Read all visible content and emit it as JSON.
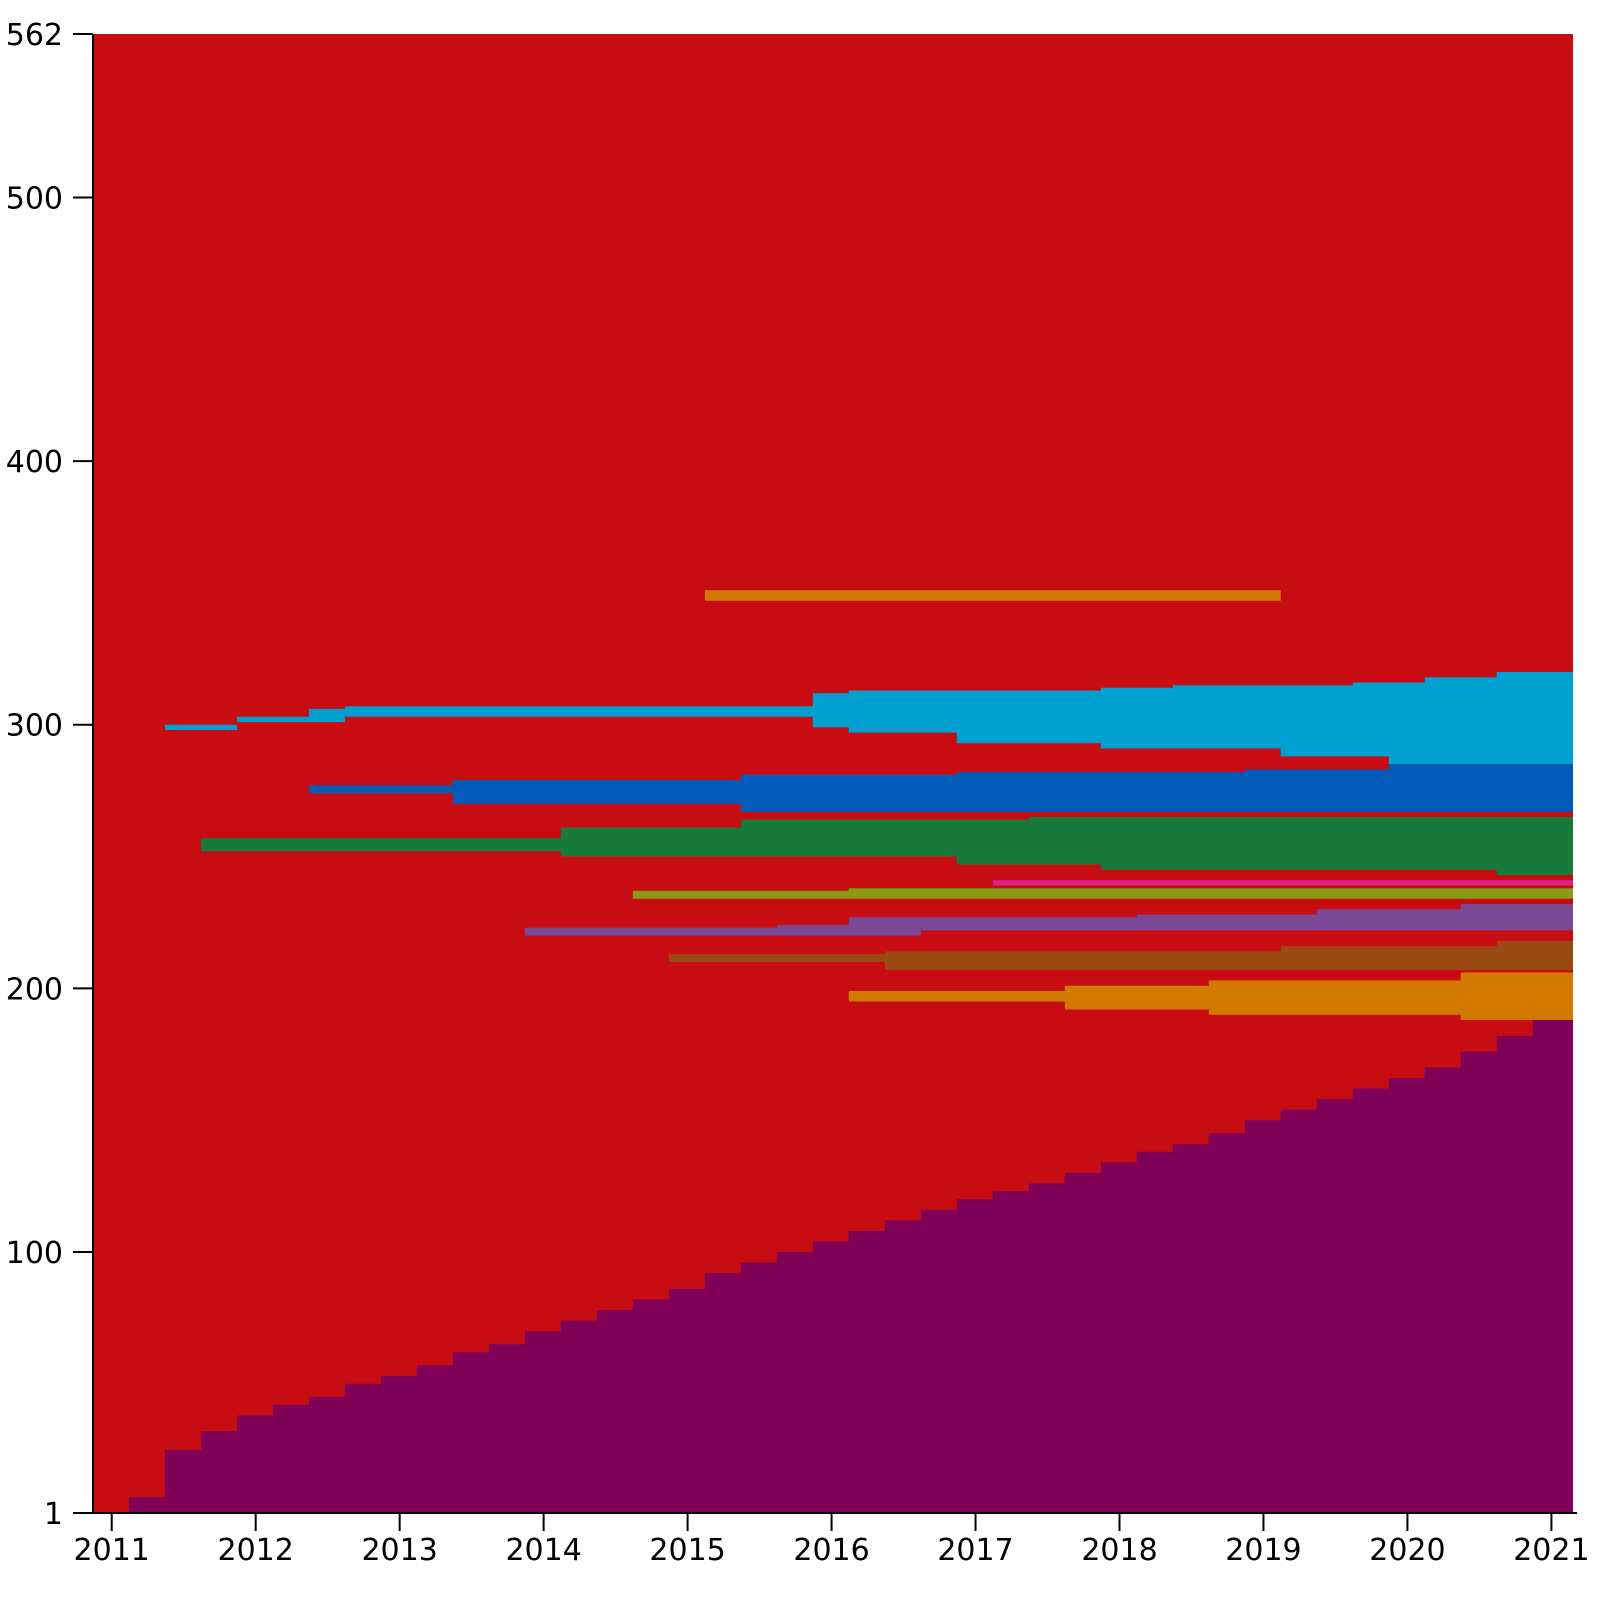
{
  "chart_data": {
    "type": "area",
    "title": "",
    "xlabel": "",
    "ylabel": "",
    "grid": false,
    "legend": "none",
    "x_ticks": [
      "2011",
      "2012",
      "2013",
      "2014",
      "2015",
      "2016",
      "2017",
      "2018",
      "2019",
      "2020",
      "2021"
    ],
    "y_ticks": [
      "1",
      "100",
      "200",
      "300",
      "400",
      "500",
      "562"
    ],
    "ylim": [
      1,
      562
    ],
    "x_range": [
      2010.87,
      2021.15
    ],
    "series": [
      {
        "color": "#800058",
        "points": [
          [
            2010.87,
            1
          ],
          [
            2011.12,
            1
          ],
          [
            2011.12,
            7
          ],
          [
            2011.37,
            7
          ],
          [
            2011.37,
            25
          ],
          [
            2011.62,
            25
          ],
          [
            2011.62,
            32
          ],
          [
            2011.87,
            32
          ],
          [
            2011.87,
            38
          ],
          [
            2012.12,
            38
          ],
          [
            2012.12,
            42
          ],
          [
            2012.37,
            42
          ],
          [
            2012.37,
            45
          ],
          [
            2012.62,
            45
          ],
          [
            2012.62,
            50
          ],
          [
            2012.87,
            50
          ],
          [
            2012.87,
            53
          ],
          [
            2013.12,
            53
          ],
          [
            2013.12,
            57
          ],
          [
            2013.37,
            57
          ],
          [
            2013.37,
            62
          ],
          [
            2013.62,
            62
          ],
          [
            2013.62,
            65
          ],
          [
            2013.87,
            65
          ],
          [
            2013.87,
            70
          ],
          [
            2014.12,
            70
          ],
          [
            2014.12,
            74
          ],
          [
            2014.37,
            74
          ],
          [
            2014.37,
            78
          ],
          [
            2014.62,
            78
          ],
          [
            2014.62,
            82
          ],
          [
            2014.87,
            82
          ],
          [
            2014.87,
            86
          ],
          [
            2015.12,
            86
          ],
          [
            2015.12,
            92
          ],
          [
            2015.37,
            92
          ],
          [
            2015.37,
            96
          ],
          [
            2015.62,
            96
          ],
          [
            2015.62,
            100
          ],
          [
            2015.87,
            100
          ],
          [
            2015.87,
            104
          ],
          [
            2016.12,
            104
          ],
          [
            2016.12,
            108
          ],
          [
            2016.37,
            108
          ],
          [
            2016.37,
            112
          ],
          [
            2016.62,
            112
          ],
          [
            2016.62,
            116
          ],
          [
            2016.87,
            116
          ],
          [
            2016.87,
            120
          ],
          [
            2017.12,
            120
          ],
          [
            2017.12,
            123
          ],
          [
            2017.37,
            123
          ],
          [
            2017.37,
            126
          ],
          [
            2017.62,
            126
          ],
          [
            2017.62,
            130
          ],
          [
            2017.87,
            130
          ],
          [
            2017.87,
            134
          ],
          [
            2018.12,
            134
          ],
          [
            2018.12,
            138
          ],
          [
            2018.37,
            138
          ],
          [
            2018.37,
            141
          ],
          [
            2018.62,
            141
          ],
          [
            2018.62,
            145
          ],
          [
            2018.87,
            145
          ],
          [
            2018.87,
            150
          ],
          [
            2019.12,
            150
          ],
          [
            2019.12,
            154
          ],
          [
            2019.37,
            154
          ],
          [
            2019.37,
            158
          ],
          [
            2019.62,
            158
          ],
          [
            2019.62,
            162
          ],
          [
            2019.87,
            162
          ],
          [
            2019.87,
            166
          ],
          [
            2020.12,
            166
          ],
          [
            2020.12,
            170
          ],
          [
            2020.37,
            170
          ],
          [
            2020.37,
            176
          ],
          [
            2020.62,
            176
          ],
          [
            2020.62,
            182
          ],
          [
            2020.87,
            182
          ],
          [
            2020.87,
            188
          ],
          [
            2021.15,
            188
          ]
        ]
      },
      {
        "color": "#00A0D0",
        "points": [
          [
            2011.37,
            298
          ],
          [
            2011.87,
            298
          ],
          [
            2011.87,
            301
          ],
          [
            2012.62,
            301
          ],
          [
            2012.62,
            303
          ],
          [
            2015.87,
            303
          ],
          [
            2015.87,
            299
          ],
          [
            2016.12,
            299
          ],
          [
            2016.12,
            297
          ],
          [
            2016.87,
            297
          ],
          [
            2016.87,
            293
          ],
          [
            2017.87,
            293
          ],
          [
            2017.87,
            291
          ],
          [
            2019.12,
            291
          ],
          [
            2019.12,
            288
          ],
          [
            2019.87,
            288
          ],
          [
            2019.87,
            285
          ],
          [
            2021.15,
            285
          ]
        ],
        "top": [
          [
            2011.37,
            300
          ],
          [
            2011.87,
            300
          ],
          [
            2011.87,
            303
          ],
          [
            2012.37,
            303
          ],
          [
            2012.37,
            306
          ],
          [
            2012.62,
            306
          ],
          [
            2012.62,
            307
          ],
          [
            2015.87,
            307
          ],
          [
            2015.87,
            312
          ],
          [
            2016.12,
            312
          ],
          [
            2016.12,
            313
          ],
          [
            2017.87,
            313
          ],
          [
            2017.87,
            314
          ],
          [
            2018.37,
            314
          ],
          [
            2018.37,
            315
          ],
          [
            2019.62,
            315
          ],
          [
            2019.62,
            316
          ],
          [
            2020.12,
            316
          ],
          [
            2020.12,
            318
          ],
          [
            2020.62,
            318
          ],
          [
            2020.62,
            320
          ],
          [
            2021.15,
            320
          ]
        ]
      },
      {
        "color": "#005BBB",
        "points": [
          [
            2012.37,
            274
          ],
          [
            2013.37,
            274
          ],
          [
            2013.37,
            270
          ],
          [
            2015.37,
            270
          ],
          [
            2015.37,
            267
          ],
          [
            2021.15,
            267
          ]
        ],
        "top": [
          [
            2012.37,
            277
          ],
          [
            2013.37,
            277
          ],
          [
            2013.37,
            279
          ],
          [
            2015.37,
            279
          ],
          [
            2015.37,
            281
          ],
          [
            2016.87,
            281
          ],
          [
            2016.87,
            282
          ],
          [
            2018.87,
            282
          ],
          [
            2018.87,
            283
          ],
          [
            2019.87,
            283
          ],
          [
            2019.87,
            285
          ],
          [
            2021.15,
            285
          ]
        ]
      },
      {
        "color": "#187A3A",
        "points": [
          [
            2011.62,
            252
          ],
          [
            2014.12,
            252
          ],
          [
            2014.12,
            250
          ],
          [
            2016.87,
            250
          ],
          [
            2016.87,
            247
          ],
          [
            2017.87,
            247
          ],
          [
            2017.87,
            245
          ],
          [
            2020.62,
            245
          ],
          [
            2020.62,
            243
          ],
          [
            2021.15,
            243
          ]
        ],
        "top": [
          [
            2011.62,
            257
          ],
          [
            2014.12,
            257
          ],
          [
            2014.12,
            261
          ],
          [
            2015.37,
            261
          ],
          [
            2015.37,
            264
          ],
          [
            2017.37,
            264
          ],
          [
            2017.37,
            265
          ],
          [
            2021.15,
            265
          ]
        ]
      },
      {
        "color": "#E0208A",
        "points": [
          [
            2017.12,
            239
          ],
          [
            2021.15,
            239
          ]
        ],
        "top": [
          [
            2017.12,
            241
          ],
          [
            2021.15,
            241
          ]
        ]
      },
      {
        "color": "#8A9A12",
        "points": [
          [
            2014.62,
            234
          ],
          [
            2021.15,
            234
          ]
        ],
        "top": [
          [
            2014.62,
            237
          ],
          [
            2016.12,
            237
          ],
          [
            2016.12,
            238
          ],
          [
            2021.15,
            238
          ]
        ]
      },
      {
        "color": "#7A4894",
        "points": [
          [
            2013.87,
            220
          ],
          [
            2016.62,
            220
          ],
          [
            2016.62,
            222
          ],
          [
            2021.15,
            222
          ]
        ],
        "top": [
          [
            2013.87,
            223
          ],
          [
            2015.62,
            223
          ],
          [
            2015.62,
            224
          ],
          [
            2016.12,
            224
          ],
          [
            2016.12,
            227
          ],
          [
            2018.12,
            227
          ],
          [
            2018.12,
            228
          ],
          [
            2019.37,
            228
          ],
          [
            2019.37,
            230
          ],
          [
            2020.37,
            230
          ],
          [
            2020.37,
            232
          ],
          [
            2021.15,
            232
          ]
        ]
      },
      {
        "color": "#9A4A12",
        "points": [
          [
            2014.87,
            210
          ],
          [
            2016.37,
            210
          ],
          [
            2016.37,
            207
          ],
          [
            2021.15,
            207
          ]
        ],
        "top": [
          [
            2014.87,
            213
          ],
          [
            2016.37,
            213
          ],
          [
            2016.37,
            214
          ],
          [
            2019.12,
            214
          ],
          [
            2019.12,
            216
          ],
          [
            2020.62,
            216
          ],
          [
            2020.62,
            218
          ],
          [
            2021.15,
            218
          ]
        ]
      },
      {
        "color": "#D27A00",
        "points": [
          [
            2016.12,
            195
          ],
          [
            2017.62,
            195
          ],
          [
            2017.62,
            192
          ],
          [
            2018.62,
            192
          ],
          [
            2018.62,
            190
          ],
          [
            2020.37,
            190
          ],
          [
            2020.37,
            188
          ],
          [
            2021.15,
            188
          ]
        ],
        "top": [
          [
            2016.12,
            199
          ],
          [
            2017.62,
            199
          ],
          [
            2017.62,
            201
          ],
          [
            2018.62,
            201
          ],
          [
            2018.62,
            203
          ],
          [
            2020.37,
            203
          ],
          [
            2020.37,
            206
          ],
          [
            2021.15,
            206
          ]
        ]
      },
      {
        "color": "#D27A00",
        "points": [
          [
            2015.12,
            347
          ],
          [
            2019.12,
            347
          ]
        ],
        "top": [
          [
            2015.12,
            351
          ],
          [
            2019.12,
            351
          ]
        ]
      }
    ]
  }
}
